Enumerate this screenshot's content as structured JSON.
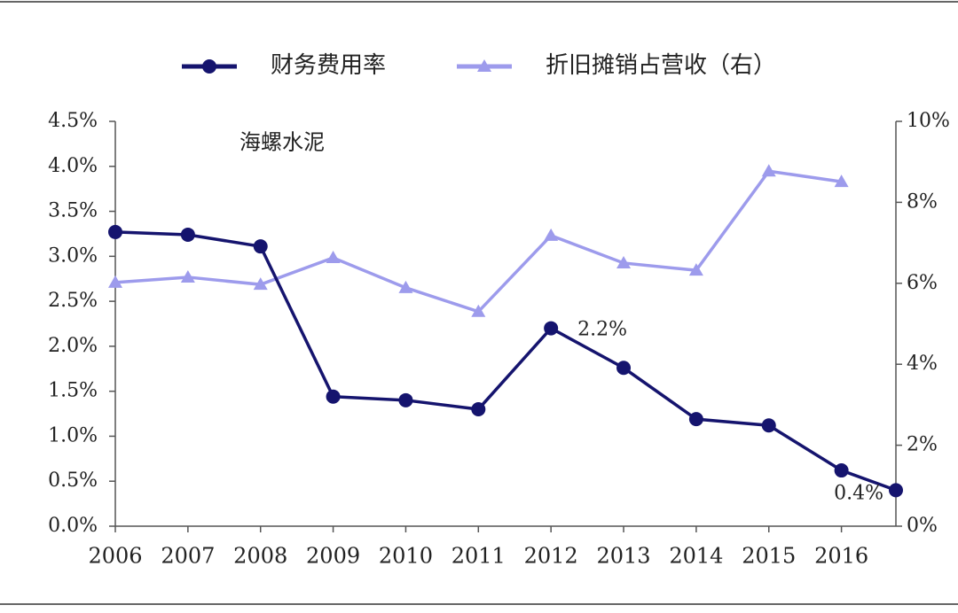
{
  "chart_data": {
    "type": "line",
    "annotation": "海螺水泥",
    "xlim": [
      2006,
      2016.75
    ],
    "xticks": [
      2006,
      2007,
      2008,
      2009,
      2010,
      2011,
      2012,
      2013,
      2014,
      2015,
      2016
    ],
    "ylim": [
      0,
      4.5
    ],
    "yticks": [
      {
        "value": 0,
        "label": "0.0%"
      },
      {
        "value": 0.5,
        "label": "0.5%"
      },
      {
        "value": 1,
        "label": "1.0%"
      },
      {
        "value": 1.5,
        "label": "1.5%"
      },
      {
        "value": 2,
        "label": "2.0%"
      },
      {
        "value": 2.5,
        "label": "2.5%"
      },
      {
        "value": 3,
        "label": "3.0%"
      },
      {
        "value": 3.5,
        "label": "3.5%"
      },
      {
        "value": 4,
        "label": "4.0%"
      },
      {
        "value": 4.5,
        "label": "4.5%"
      }
    ],
    "y2lim": [
      0,
      10
    ],
    "y2ticks": [
      {
        "value": 0,
        "label": "0%"
      },
      {
        "value": 2,
        "label": "2%"
      },
      {
        "value": 4,
        "label": "4%"
      },
      {
        "value": 6,
        "label": "6%"
      },
      {
        "value": 8,
        "label": "8%"
      },
      {
        "value": 10,
        "label": "10%"
      }
    ],
    "legend": "top",
    "series": [
      {
        "name": "财务费用率",
        "color": "#15146e",
        "marker": "circle",
        "x": [
          2006,
          2007,
          2008,
          2009,
          2010,
          2011,
          2012,
          2013,
          2014,
          2015,
          2016,
          2016.75
        ],
        "values": [
          3.27,
          3.24,
          3.11,
          1.44,
          1.4,
          1.3,
          2.2,
          1.76,
          1.19,
          1.12,
          0.62,
          0.4
        ],
        "value_labels": [
          null,
          null,
          null,
          null,
          null,
          null,
          "2.2%",
          null,
          null,
          null,
          null,
          "0.4%"
        ]
      },
      {
        "name": "折旧摊销占营收（右）",
        "color": "#9d9bec",
        "marker": "triangle",
        "axis": "y2",
        "x": [
          2006,
          2007,
          2008,
          2009,
          2010,
          2011,
          2012,
          2013,
          2014,
          2015,
          2016
        ],
        "values": [
          6.02,
          6.15,
          5.97,
          6.63,
          5.89,
          5.3,
          7.18,
          6.5,
          6.32,
          8.77,
          8.51
        ]
      }
    ]
  }
}
